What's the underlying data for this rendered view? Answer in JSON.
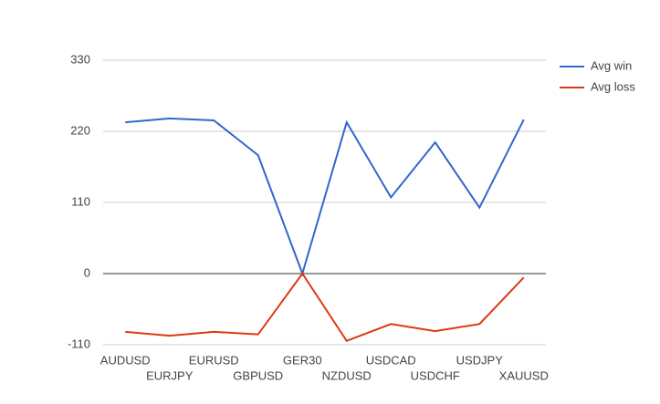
{
  "chart_data": {
    "type": "line",
    "categories": [
      "AUDUSD",
      "EURJPY",
      "EURUSD",
      "GBPUSD",
      "GER30",
      "NZDUSD",
      "USDCAD",
      "USDCHF",
      "USDJPY",
      "XAUUSD"
    ],
    "series": [
      {
        "name": "Avg win",
        "color": "#3366cc",
        "values": [
          234,
          240,
          237,
          183,
          0,
          234,
          118,
          203,
          102,
          238
        ]
      },
      {
        "name": "Avg loss",
        "color": "#dc3912",
        "values": [
          -90,
          -96,
          -90,
          -94,
          0,
          -104,
          -78,
          -89,
          -78,
          -6
        ]
      }
    ],
    "ylim": [
      -110,
      330
    ],
    "yticks": [
      -110,
      0,
      110,
      220,
      330
    ],
    "grid": true,
    "legend": "right"
  }
}
